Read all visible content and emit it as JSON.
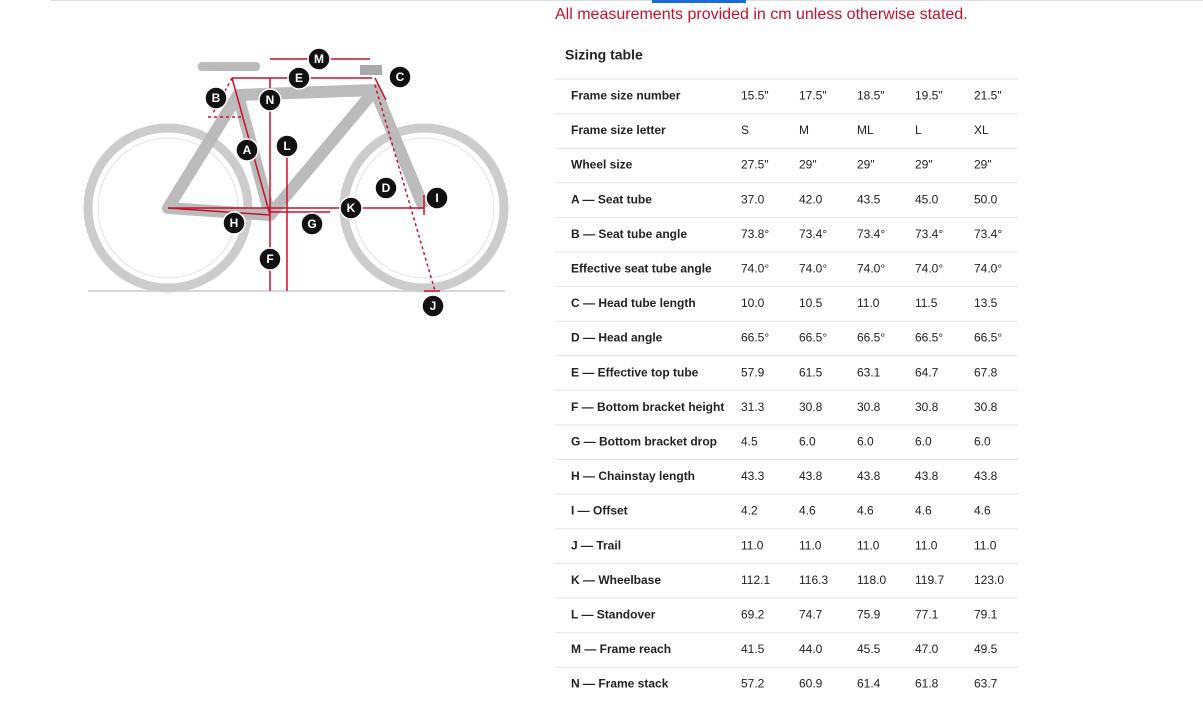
{
  "notice": "All measurements provided in cm unless otherwise stated.",
  "diagram": {
    "labels": [
      "M",
      "E",
      "C",
      "B",
      "N",
      "L",
      "A",
      "D",
      "I",
      "K",
      "H",
      "G",
      "F",
      "J"
    ]
  },
  "table": {
    "title": "Sizing table",
    "rows": [
      [
        "Frame size number",
        "15.5\"",
        "17.5\"",
        "18.5\"",
        "19.5\"",
        "21.5\""
      ],
      [
        "Frame size letter",
        "S",
        "M",
        "ML",
        "L",
        "XL"
      ],
      [
        "Wheel size",
        "27.5\"",
        "29\"",
        "29\"",
        "29\"",
        "29\""
      ],
      [
        "A — Seat tube",
        "37.0",
        "42.0",
        "43.5",
        "45.0",
        "50.0"
      ],
      [
        "B — Seat tube angle",
        "73.8°",
        "73.4°",
        "73.4°",
        "73.4°",
        "73.4°"
      ],
      [
        "Effective seat tube angle",
        "74.0°",
        "74.0°",
        "74.0°",
        "74.0°",
        "74.0°"
      ],
      [
        "C — Head tube length",
        "10.0",
        "10.5",
        "11.0",
        "11.5",
        "13.5"
      ],
      [
        "D — Head angle",
        "66.5°",
        "66.5°",
        "66.5°",
        "66.5°",
        "66.5°"
      ],
      [
        "E — Effective top tube",
        "57.9",
        "61.5",
        "63.1",
        "64.7",
        "67.8"
      ],
      [
        "F — Bottom bracket height",
        "31.3",
        "30.8",
        "30.8",
        "30.8",
        "30.8"
      ],
      [
        "G — Bottom bracket drop",
        "4.5",
        "6.0",
        "6.0",
        "6.0",
        "6.0"
      ],
      [
        "H — Chainstay length",
        "43.3",
        "43.8",
        "43.8",
        "43.8",
        "43.8"
      ],
      [
        "I — Offset",
        "4.2",
        "4.6",
        "4.6",
        "4.6",
        "4.6"
      ],
      [
        "J — Trail",
        "11.0",
        "11.0",
        "11.0",
        "11.0",
        "11.0"
      ],
      [
        "K — Wheelbase",
        "112.1",
        "116.3",
        "118.0",
        "119.7",
        "123.0"
      ],
      [
        "L — Standover",
        "69.2",
        "74.7",
        "75.9",
        "77.1",
        "79.1"
      ],
      [
        "M — Frame reach",
        "41.5",
        "44.0",
        "45.5",
        "47.0",
        "49.5"
      ],
      [
        "N — Frame stack",
        "57.2",
        "60.9",
        "61.4",
        "61.8",
        "63.7"
      ]
    ]
  }
}
